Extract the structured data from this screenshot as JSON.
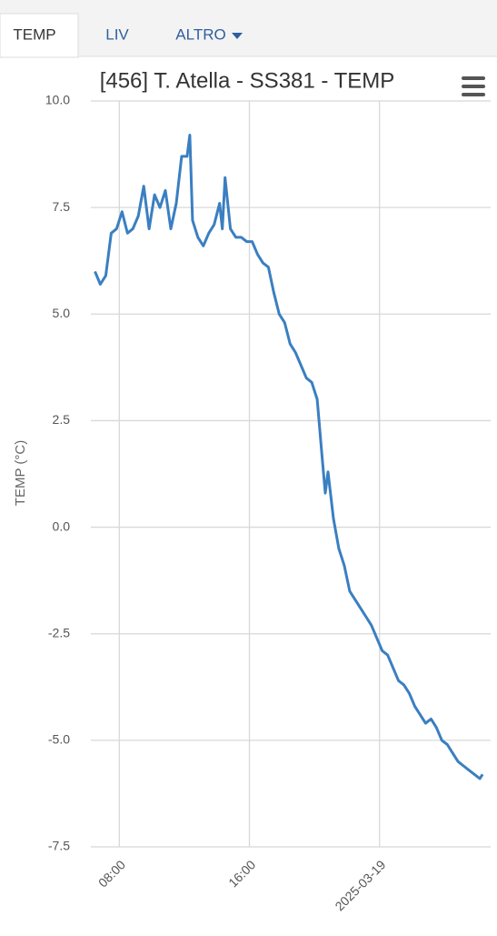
{
  "tabs": {
    "items": [
      "TEMP",
      "LIV",
      "ALTRO"
    ],
    "active": "TEMP"
  },
  "chart_data": {
    "type": "line",
    "title": "[456] T. Atella - SS381 - TEMP",
    "y_label": "TEMP (°C)",
    "grid": true,
    "xlim": [
      "2025-03-18T06:15",
      "2025-03-19T06:50"
    ],
    "xticks": [
      {
        "value": "2025-03-18T08:00",
        "label": "08:00"
      },
      {
        "value": "2025-03-18T16:00",
        "label": "16:00"
      },
      {
        "value": "2025-03-19T00:00",
        "label": "2025-03-19"
      }
    ],
    "ylim": [
      -7.5,
      10
    ],
    "yticks": [
      {
        "value": 10,
        "label": "10.0"
      },
      7.5,
      {
        "value": 5,
        "label": "5.0"
      },
      2.5,
      {
        "value": 0,
        "label": "0.0"
      },
      -2.5,
      {
        "value": -5,
        "label": "-5.0"
      },
      -7.5
    ],
    "x": [
      "2025-03-18T06:30",
      "2025-03-18T06:50",
      "2025-03-18T07:10",
      "2025-03-18T07:30",
      "2025-03-18T07:50",
      "2025-03-18T08:10",
      "2025-03-18T08:30",
      "2025-03-18T08:50",
      "2025-03-18T09:10",
      "2025-03-18T09:30",
      "2025-03-18T09:50",
      "2025-03-18T10:10",
      "2025-03-18T10:30",
      "2025-03-18T10:50",
      "2025-03-18T11:10",
      "2025-03-18T11:30",
      "2025-03-18T11:50",
      "2025-03-18T12:10",
      "2025-03-18T12:20",
      "2025-03-18T12:30",
      "2025-03-18T12:50",
      "2025-03-18T13:10",
      "2025-03-18T13:30",
      "2025-03-18T13:50",
      "2025-03-18T14:10",
      "2025-03-18T14:20",
      "2025-03-18T14:30",
      "2025-03-18T14:50",
      "2025-03-18T15:10",
      "2025-03-18T15:30",
      "2025-03-18T15:50",
      "2025-03-18T16:10",
      "2025-03-18T16:30",
      "2025-03-18T16:50",
      "2025-03-18T17:10",
      "2025-03-18T17:30",
      "2025-03-18T17:50",
      "2025-03-18T18:10",
      "2025-03-18T18:30",
      "2025-03-18T18:50",
      "2025-03-18T19:10",
      "2025-03-18T19:30",
      "2025-03-18T19:50",
      "2025-03-18T20:10",
      "2025-03-18T20:30",
      "2025-03-18T20:40",
      "2025-03-18T20:50",
      "2025-03-18T21:10",
      "2025-03-18T21:30",
      "2025-03-18T21:50",
      "2025-03-18T22:10",
      "2025-03-18T22:30",
      "2025-03-18T22:50",
      "2025-03-18T23:10",
      "2025-03-18T23:30",
      "2025-03-18T23:50",
      "2025-03-19T00:10",
      "2025-03-19T00:30",
      "2025-03-19T00:50",
      "2025-03-19T01:10",
      "2025-03-19T01:30",
      "2025-03-19T01:50",
      "2025-03-19T02:10",
      "2025-03-19T02:30",
      "2025-03-19T02:50",
      "2025-03-19T03:10",
      "2025-03-19T03:30",
      "2025-03-19T03:50",
      "2025-03-19T04:10",
      "2025-03-19T04:30",
      "2025-03-19T04:50",
      "2025-03-19T05:10",
      "2025-03-19T05:30",
      "2025-03-19T05:50",
      "2025-03-19T06:10",
      "2025-03-19T06:20"
    ],
    "series": [
      {
        "name": "TEMP",
        "color": "#3a7fc1",
        "values": [
          6.0,
          5.7,
          5.9,
          6.9,
          7.0,
          7.4,
          6.9,
          7.0,
          7.3,
          8.0,
          7.0,
          7.8,
          7.5,
          7.9,
          7.0,
          7.6,
          8.7,
          8.7,
          9.2,
          7.2,
          6.8,
          6.6,
          6.9,
          7.1,
          7.6,
          7.0,
          8.2,
          7.0,
          6.8,
          6.8,
          6.7,
          6.7,
          6.4,
          6.2,
          6.1,
          5.5,
          5.0,
          4.8,
          4.3,
          4.1,
          3.8,
          3.5,
          3.4,
          3.0,
          1.5,
          0.8,
          1.3,
          0.2,
          -0.5,
          -0.9,
          -1.5,
          -1.7,
          -1.9,
          -2.1,
          -2.3,
          -2.6,
          -2.9,
          -3.0,
          -3.3,
          -3.6,
          -3.7,
          -3.9,
          -4.2,
          -4.4,
          -4.6,
          -4.5,
          -4.7,
          -5.0,
          -5.1,
          -5.3,
          -5.5,
          -5.6,
          -5.7,
          -5.8,
          -5.9,
          -5.8
        ]
      }
    ]
  }
}
